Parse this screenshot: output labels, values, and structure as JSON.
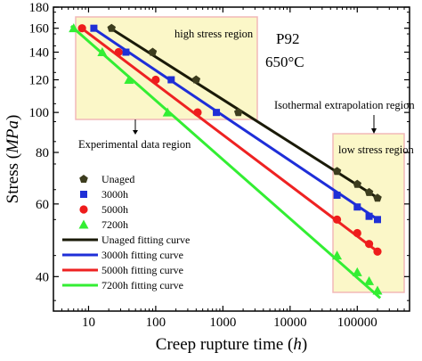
{
  "chart_data": {
    "type": "scatter",
    "x_scale": "log",
    "y_scale": "log",
    "xlim": [
      3,
      600000
    ],
    "ylim": [
      33,
      180
    ],
    "xlabel_text": "Creep rupture time (",
    "xlabel_italic": "h",
    "xlabel_end": ")",
    "ylabel_text": "Stress (",
    "ylabel_italic": "MPa",
    "ylabel_end": ")",
    "x_ticks": [
      {
        "value": 10,
        "label": "10"
      },
      {
        "value": 100,
        "label": "100"
      },
      {
        "value": 1000,
        "label": "1000"
      },
      {
        "value": 10000,
        "label": "10000"
      },
      {
        "value": 100000,
        "label": "100000"
      }
    ],
    "y_ticks": [
      {
        "value": 40,
        "label": "40"
      },
      {
        "value": 60,
        "label": "60"
      },
      {
        "value": 80,
        "label": "80"
      },
      {
        "value": 100,
        "label": "100"
      },
      {
        "value": 120,
        "label": "120"
      },
      {
        "value": 140,
        "label": "140"
      },
      {
        "value": 160,
        "label": "160"
      },
      {
        "value": 180,
        "label": "180"
      }
    ],
    "grid": false,
    "legend_position": "lower-left",
    "series": [
      {
        "name": "Unaged",
        "marker": "pentagon",
        "color": "#3d3d1e",
        "points": [
          [
            22,
            160
          ],
          [
            90,
            140
          ],
          [
            400,
            120
          ],
          [
            1700,
            100
          ],
          [
            50000,
            72
          ],
          [
            100000,
            67
          ],
          [
            150000,
            64
          ],
          [
            200000,
            62
          ]
        ]
      },
      {
        "name": "3000h",
        "marker": "square",
        "color": "#1f2fd6",
        "points": [
          [
            12,
            160
          ],
          [
            36,
            140
          ],
          [
            170,
            120
          ],
          [
            800,
            100
          ],
          [
            50000,
            63
          ],
          [
            100000,
            59
          ],
          [
            150000,
            56
          ],
          [
            200000,
            55
          ]
        ]
      },
      {
        "name": "5000h",
        "marker": "circle",
        "color": "#ee1c1c",
        "points": [
          [
            8,
            160
          ],
          [
            28,
            140
          ],
          [
            100,
            120
          ],
          [
            420,
            100
          ],
          [
            50000,
            55
          ],
          [
            100000,
            51
          ],
          [
            150000,
            48
          ],
          [
            200000,
            46
          ]
        ]
      },
      {
        "name": "7200h",
        "marker": "triangle",
        "color": "#33ee33",
        "points": [
          [
            6,
            160
          ],
          [
            16,
            140
          ],
          [
            40,
            120
          ],
          [
            150,
            100
          ],
          [
            50000,
            45
          ],
          [
            100000,
            41
          ],
          [
            150000,
            39
          ],
          [
            200000,
            37
          ]
        ]
      }
    ],
    "fits": [
      {
        "name": "Unaged fitting curve",
        "color": "#1a1a08",
        "x": [
          20,
          220000
        ],
        "y": [
          161,
          61.5
        ]
      },
      {
        "name": "3000h fitting curve",
        "color": "#1e2ed8",
        "x": [
          11,
          220000
        ],
        "y": [
          161,
          54.5
        ]
      },
      {
        "name": "5000h fitting curve",
        "color": "#ee2222",
        "x": [
          7.5,
          220000
        ],
        "y": [
          161,
          45.5
        ]
      },
      {
        "name": "7200h fitting curve",
        "color": "#33ee33",
        "x": [
          5.5,
          220000
        ],
        "y": [
          162,
          35.5
        ]
      }
    ],
    "annotations": {
      "title_steel": "P92",
      "title_temp": "650°C",
      "high_stress": "high stress region",
      "experimental": "Experimental data region",
      "isothermal": "Isothermal extrapolation region",
      "low_stress": "low stress region"
    },
    "region_colors": {
      "fill": "#fbf7c8",
      "stroke": "#f2b8b8"
    }
  }
}
